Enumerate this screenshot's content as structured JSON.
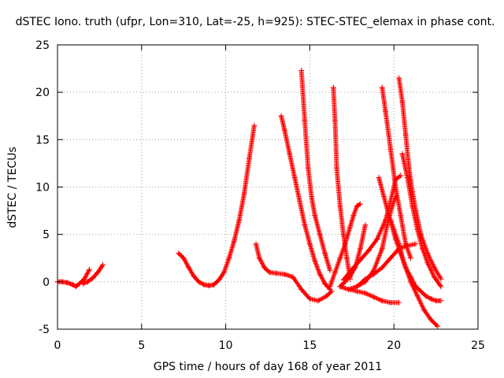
{
  "chart_data": {
    "type": "scatter",
    "title": "dSTEC Iono. truth (ufpr, Lon=310, Lat=-25, h=925): STEC-STEC_elemax in phase cont.",
    "xlabel": "GPS time / hours of day 168 of year 2011",
    "ylabel": "dSTEC  / TECUs",
    "xlim": [
      0,
      25
    ],
    "ylim": [
      -5,
      25
    ],
    "xticks": [
      0,
      5,
      10,
      15,
      20,
      25
    ],
    "yticks": [
      -5,
      0,
      5,
      10,
      15,
      20,
      25
    ],
    "grid": true,
    "marker": "plus",
    "color": "#ff0000",
    "series": [
      {
        "x": [
          0.0,
          0.3,
          0.6,
          0.9,
          1.1,
          1.3,
          1.6,
          1.9
        ],
        "y": [
          0.0,
          0.0,
          -0.1,
          -0.3,
          -0.5,
          -0.2,
          0.3,
          1.3
        ]
      },
      {
        "x": [
          1.5,
          1.8,
          2.1,
          2.4,
          2.7
        ],
        "y": [
          -0.2,
          0.0,
          0.4,
          1.0,
          1.8
        ]
      },
      {
        "x": [
          7.2,
          7.5,
          7.8,
          8.1,
          8.4,
          8.7,
          9.0,
          9.3,
          9.6,
          9.9,
          10.2,
          10.5,
          10.8,
          11.1,
          11.4,
          11.7
        ],
        "y": [
          3.0,
          2.5,
          1.5,
          0.6,
          0.0,
          -0.3,
          -0.4,
          -0.3,
          0.2,
          1.0,
          2.5,
          4.3,
          6.5,
          9.3,
          13.0,
          16.5
        ]
      },
      {
        "x": [
          11.8,
          12.0,
          12.3,
          12.6,
          13.0,
          13.5,
          14.0,
          14.5,
          15.0,
          15.5,
          16.0,
          16.3
        ],
        "y": [
          4.0,
          2.5,
          1.5,
          1.0,
          0.9,
          0.8,
          0.5,
          -0.8,
          -1.8,
          -2.0,
          -1.5,
          -1.0
        ]
      },
      {
        "x": [
          13.3,
          13.5,
          13.8,
          14.1,
          14.4,
          14.7,
          15.0,
          15.3,
          15.6,
          15.9,
          16.2
        ],
        "y": [
          17.5,
          16.0,
          13.5,
          11.0,
          8.5,
          6.0,
          4.0,
          2.2,
          0.8,
          -0.2,
          -0.8
        ]
      },
      {
        "x": [
          14.5,
          14.7,
          14.9,
          15.1,
          15.3,
          15.6,
          15.9,
          16.2
        ],
        "y": [
          22.3,
          17.0,
          12.0,
          9.0,
          7.0,
          5.0,
          3.0,
          1.2
        ]
      },
      {
        "x": [
          16.4,
          16.5,
          16.6,
          16.8,
          17.0,
          17.2,
          17.4
        ],
        "y": [
          20.5,
          17.0,
          12.0,
          8.0,
          5.0,
          2.5,
          0.3
        ]
      },
      {
        "x": [
          16.2,
          16.5,
          16.8,
          17.1,
          17.4,
          17.6,
          17.8,
          18.0
        ],
        "y": [
          -0.5,
          1.0,
          2.5,
          4.0,
          5.8,
          7.0,
          8.0,
          8.2
        ]
      },
      {
        "x": [
          16.8,
          17.1,
          17.4,
          17.7,
          18.0,
          18.3
        ],
        "y": [
          -0.5,
          0.0,
          0.6,
          1.5,
          3.5,
          6.0
        ]
      },
      {
        "x": [
          16.8,
          17.3,
          17.8,
          18.3,
          18.8,
          19.3,
          19.8,
          20.3
        ],
        "y": [
          -0.5,
          -0.8,
          -1.0,
          -1.2,
          -1.6,
          -2.0,
          -2.2,
          -2.2
        ]
      },
      {
        "x": [
          17.0,
          17.5,
          18.0,
          18.5,
          19.0,
          19.5,
          19.8,
          20.1,
          20.4
        ],
        "y": [
          0.2,
          1.3,
          2.3,
          3.3,
          4.5,
          6.5,
          8.5,
          10.8,
          11.2
        ]
      },
      {
        "x": [
          17.3,
          17.8,
          18.3,
          18.8,
          19.3,
          19.6,
          19.9,
          20.1
        ],
        "y": [
          -0.8,
          -0.5,
          0.0,
          1.2,
          3.5,
          6.0,
          8.0,
          9.0
        ]
      },
      {
        "x": [
          17.8,
          18.3,
          18.8,
          19.3,
          19.8,
          20.3,
          20.8,
          21.3
        ],
        "y": [
          -0.5,
          0.3,
          0.8,
          1.5,
          2.5,
          3.5,
          3.8,
          4.0
        ]
      },
      {
        "x": [
          19.1,
          19.4,
          19.7,
          20.0,
          20.3,
          20.6,
          21.0,
          21.4,
          21.8,
          22.2,
          22.6
        ],
        "y": [
          11.0,
          9.0,
          7.0,
          5.5,
          4.0,
          2.0,
          0.0,
          -1.5,
          -3.0,
          -4.0,
          -4.7
        ]
      },
      {
        "x": [
          19.3,
          19.5,
          19.8,
          20.1,
          20.4,
          20.7,
          21.0
        ],
        "y": [
          20.5,
          18.0,
          14.0,
          10.0,
          7.0,
          4.0,
          2.5
        ]
      },
      {
        "x": [
          19.8,
          20.1,
          20.4,
          20.7,
          21.0,
          21.3,
          21.6,
          21.9,
          22.2,
          22.5,
          22.8
        ],
        "y": [
          6.5,
          4.5,
          3.0,
          1.5,
          0.5,
          -0.5,
          -1.0,
          -1.5,
          -1.8,
          -2.0,
          -2.0
        ]
      },
      {
        "x": [
          20.3,
          20.5,
          20.7,
          20.9,
          21.1,
          21.3,
          21.6,
          22.0,
          22.4,
          22.8
        ],
        "y": [
          21.5,
          19.0,
          15.5,
          12.0,
          9.5,
          7.5,
          5.0,
          3.0,
          1.5,
          0.3
        ]
      },
      {
        "x": [
          20.5,
          20.8,
          21.1,
          21.4,
          21.7,
          22.0,
          22.4,
          22.8
        ],
        "y": [
          13.5,
          11.0,
          8.0,
          5.5,
          3.5,
          2.0,
          0.5,
          -0.5
        ]
      }
    ]
  }
}
